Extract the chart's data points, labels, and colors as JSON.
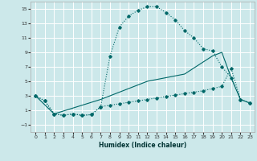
{
  "xlabel": "Humidex (Indice chaleur)",
  "background_color": "#cce8ea",
  "grid_color": "#ffffff",
  "line_color": "#006868",
  "xlim": [
    -0.5,
    23.5
  ],
  "ylim": [
    -2,
    16
  ],
  "xticks": [
    0,
    1,
    2,
    3,
    4,
    5,
    6,
    7,
    8,
    9,
    10,
    11,
    12,
    13,
    14,
    15,
    16,
    17,
    18,
    19,
    20,
    21,
    22,
    23
  ],
  "yticks": [
    -1,
    1,
    3,
    5,
    7,
    9,
    11,
    13,
    15
  ],
  "curve1_x": [
    0,
    1,
    2,
    3,
    4,
    5,
    6,
    7,
    8,
    9,
    10,
    11,
    12,
    13,
    14,
    15,
    16,
    17,
    18,
    19,
    20,
    21,
    22,
    23
  ],
  "curve1_y": [
    3,
    2.3,
    0.5,
    0.3,
    0.5,
    0.3,
    0.4,
    1.5,
    8.5,
    12.5,
    14.0,
    14.8,
    15.3,
    15.3,
    14.5,
    13.5,
    12.0,
    11.0,
    9.5,
    9.2,
    7.0,
    5.5,
    2.5,
    2.0
  ],
  "curve2_x": [
    0,
    2,
    7,
    12,
    16,
    19,
    20,
    21,
    22,
    23
  ],
  "curve2_y": [
    3,
    0.5,
    2.5,
    5.0,
    6.0,
    8.5,
    9.0,
    5.5,
    2.5,
    2.0
  ],
  "curve3_x": [
    0,
    1,
    2,
    3,
    4,
    5,
    6,
    7,
    8,
    9,
    10,
    11,
    12,
    13,
    14,
    15,
    16,
    17,
    18,
    19,
    20,
    21,
    22,
    23
  ],
  "curve3_y": [
    3,
    2.3,
    0.5,
    0.3,
    0.5,
    0.3,
    0.4,
    1.5,
    1.7,
    1.9,
    2.1,
    2.3,
    2.5,
    2.7,
    2.9,
    3.1,
    3.3,
    3.5,
    3.7,
    4.0,
    4.3,
    6.8,
    2.5,
    2.0
  ]
}
